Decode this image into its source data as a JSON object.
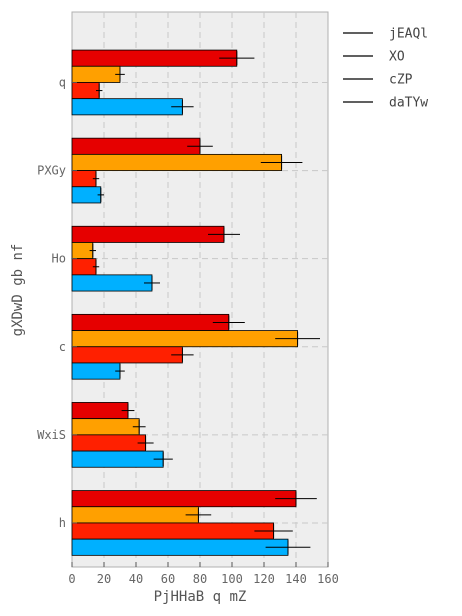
{
  "chart_data": {
    "type": "bar",
    "orientation": "horizontal",
    "categories": [
      "q",
      "PXGy",
      "Ho",
      "c",
      "WxiS",
      "h"
    ],
    "series": [
      {
        "name": "jEAQl",
        "color": "#e60000",
        "values": [
          103,
          80,
          95,
          98,
          35,
          140
        ],
        "errors": [
          11,
          8,
          10,
          10,
          4,
          13
        ]
      },
      {
        "name": "XO",
        "color": "#ffa000",
        "values": [
          30,
          131,
          13,
          141,
          42,
          79
        ],
        "errors": [
          3,
          13,
          2,
          14,
          4,
          8
        ]
      },
      {
        "name": "cZP",
        "color": "#ff2000",
        "values": [
          17,
          15,
          15,
          69,
          46,
          126
        ],
        "errors": [
          2,
          2,
          2,
          7,
          5,
          12
        ]
      },
      {
        "name": "daTYw",
        "color": "#00b0ff",
        "values": [
          69,
          18,
          50,
          30,
          57,
          135
        ],
        "errors": [
          7,
          2,
          5,
          3,
          6,
          14
        ]
      }
    ],
    "xlabel": "PjHHaB q mZ",
    "ylabel": "gXDwD gb nf",
    "xlim": [
      0,
      160
    ],
    "xticks": [
      0,
      20,
      40,
      60,
      80,
      100,
      120,
      140,
      160
    ],
    "grid": true,
    "legend_position": "outside-right"
  }
}
